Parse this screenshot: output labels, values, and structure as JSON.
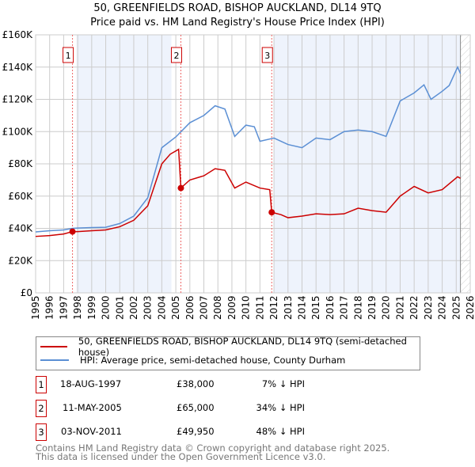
{
  "chart_data": {
    "type": "line",
    "title": "50, GREENFIELDS ROAD, BISHOP AUCKLAND, DL14 9TQ",
    "subtitle": "Price paid vs. HM Land Registry's House Price Index (HPI)",
    "xlim": [
      1995,
      2026
    ],
    "ylim": [
      0,
      160000
    ],
    "x_ticks": [
      "1995",
      "1996",
      "1997",
      "1998",
      "1999",
      "2000",
      "2001",
      "2002",
      "2003",
      "2004",
      "2005",
      "2006",
      "2007",
      "2008",
      "2009",
      "2010",
      "2011",
      "2012",
      "2013",
      "2014",
      "2015",
      "2016",
      "2017",
      "2018",
      "2019",
      "2020",
      "2021",
      "2022",
      "2023",
      "2024",
      "2025",
      "2026"
    ],
    "y_ticks": [
      {
        "v": 0,
        "label": "£0"
      },
      {
        "v": 20000,
        "label": "£20K"
      },
      {
        "v": 40000,
        "label": "£40K"
      },
      {
        "v": 60000,
        "label": "£60K"
      },
      {
        "v": 80000,
        "label": "£80K"
      },
      {
        "v": 100000,
        "label": "£100K"
      },
      {
        "v": 120000,
        "label": "£120K"
      },
      {
        "v": 140000,
        "label": "£140K"
      },
      {
        "v": 160000,
        "label": "£160K"
      }
    ],
    "grid": true,
    "series": [
      {
        "name": "50, GREENFIELDS ROAD, BISHOP AUCKLAND, DL14 9TQ (semi-detached house)",
        "color": "#cc0000",
        "x": [
          1995,
          1996,
          1997,
          1997.63,
          1998,
          1999,
          2000,
          2001,
          2002,
          2003,
          2004,
          2004.6,
          2005.2,
          2005.36,
          2006,
          2007,
          2007.8,
          2008.5,
          2009.2,
          2010,
          2011,
          2011.7,
          2011.84,
          2012.5,
          2013,
          2014,
          2015,
          2016,
          2017,
          2018,
          2019,
          2020,
          2021,
          2022,
          2023,
          2024,
          2025.1,
          2025.3
        ],
        "y": [
          35000,
          35500,
          36500,
          38000,
          38000,
          38500,
          39000,
          41000,
          45000,
          54000,
          80000,
          86000,
          89000,
          65000,
          70000,
          72600,
          77000,
          76000,
          65000,
          68700,
          65000,
          64000,
          49950,
          48500,
          46600,
          47600,
          49000,
          48500,
          49000,
          52500,
          51000,
          50000,
          60000,
          66000,
          62000,
          64000,
          72000,
          71000
        ]
      },
      {
        "name": "HPI: Average price, semi-detached house, County Durham",
        "color": "#5b8fd4",
        "x": [
          1995,
          1996,
          1997,
          1997.63,
          1998,
          1999,
          2000,
          2001,
          2002,
          2003,
          2004,
          2005,
          2006,
          2007,
          2007.8,
          2008.5,
          2009.2,
          2010,
          2010.6,
          2011,
          2012,
          2013,
          2014,
          2015,
          2016,
          2017,
          2018,
          2019,
          2020,
          2021,
          2022,
          2022.7,
          2023.2,
          2024,
          2024.5,
          2025.1,
          2025.3
        ],
        "y": [
          37800,
          38500,
          39000,
          40000,
          40200,
          40500,
          40700,
          43000,
          47600,
          59000,
          90000,
          96700,
          105500,
          110000,
          116000,
          114000,
          97000,
          104000,
          103000,
          94000,
          96000,
          92000,
          90000,
          96000,
          95000,
          100000,
          101000,
          100000,
          97000,
          119000,
          124000,
          129000,
          120000,
          125000,
          128600,
          140000,
          136000
        ]
      }
    ],
    "annotations": [
      {
        "label": "1",
        "x": 1997.63,
        "price": 38000
      },
      {
        "label": "2",
        "x": 2005.36,
        "price": 65000
      },
      {
        "label": "3",
        "x": 2011.84,
        "price": 49950
      }
    ],
    "legend_placement": "below"
  },
  "legend": {
    "items": [
      "50, GREENFIELDS ROAD, BISHOP AUCKLAND, DL14 9TQ (semi-detached house)",
      "HPI: Average price, semi-detached house, County Durham"
    ]
  },
  "sales": [
    {
      "num": "1",
      "date": "18-AUG-1997",
      "price": "£38,000",
      "hpi": "7% ↓ HPI"
    },
    {
      "num": "2",
      "date": "11-MAY-2005",
      "price": "£65,000",
      "hpi": "34% ↓ HPI"
    },
    {
      "num": "3",
      "date": "03-NOV-2011",
      "price": "£49,950",
      "hpi": "48% ↓ HPI"
    }
  ],
  "footer": {
    "line1": "Contains HM Land Registry data © Crown copyright and database right 2025.",
    "line2": "This data is licensed under the Open Government Licence v3.0."
  }
}
